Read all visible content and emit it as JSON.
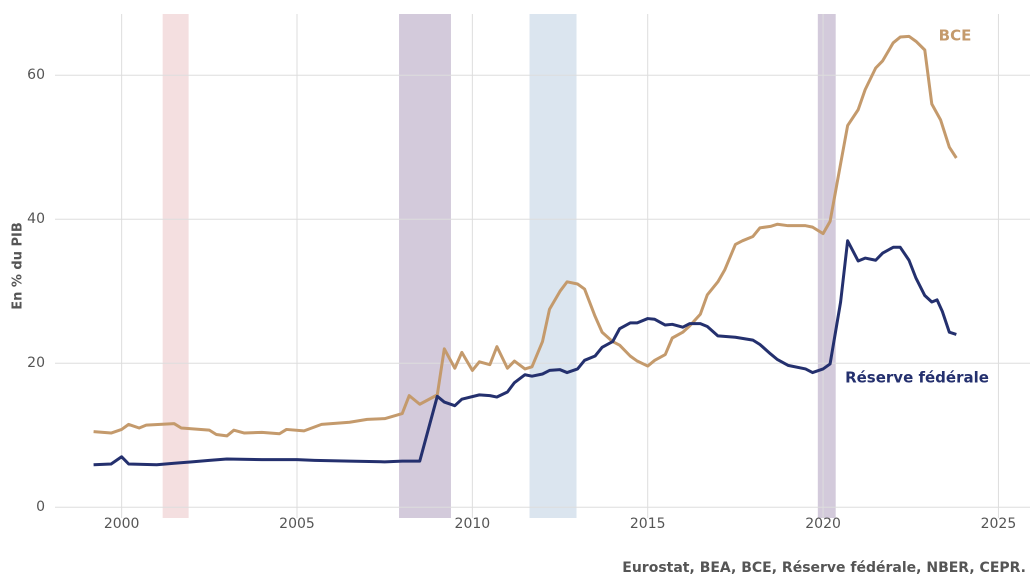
{
  "chart_data": {
    "type": "line",
    "y_label": "En % du PIB",
    "source": "Eurostat, BEA, BCE, Réserve fédérale, NBER, CEPR.",
    "xlim": [
      1998.1,
      2025.9
    ],
    "xticks": [
      2000,
      2005,
      2010,
      2015,
      2020,
      2025
    ],
    "ylim": [
      -1.5,
      68.5
    ],
    "yticks": [
      0,
      20,
      40,
      60
    ],
    "grid": true,
    "bands": [
      {
        "start": 2001.17,
        "end": 2001.91,
        "color": "#f4dfe0"
      },
      {
        "start": 2007.91,
        "end": 2009.39,
        "color": "#d3cadb"
      },
      {
        "start": 2011.63,
        "end": 2012.97,
        "color": "#dbe5ef"
      },
      {
        "start": 2019.85,
        "end": 2020.36,
        "color": "#d3cadb"
      }
    ],
    "series": [
      {
        "name": "BCE",
        "color": "#c49a6c",
        "x": [
          1999.2,
          1999.7,
          2000.0,
          2000.2,
          2000.5,
          2000.7,
          2001.5,
          2001.7,
          2002.5,
          2002.7,
          2003.0,
          2003.2,
          2003.5,
          2004.0,
          2004.5,
          2004.7,
          2005.2,
          2005.7,
          2006.5,
          2007.0,
          2007.5,
          2008.0,
          2008.2,
          2008.5,
          2009.0,
          2009.2,
          2009.5,
          2009.7,
          2010.0,
          2010.2,
          2010.5,
          2010.7,
          2011.0,
          2011.2,
          2011.5,
          2011.7,
          2012.0,
          2012.2,
          2012.5,
          2012.7,
          2013.0,
          2013.2,
          2013.5,
          2013.7,
          2014.0,
          2014.2,
          2014.5,
          2014.7,
          2015.0,
          2015.2,
          2015.5,
          2015.7,
          2016.0,
          2016.2,
          2016.5,
          2016.7,
          2017.0,
          2017.2,
          2017.5,
          2017.7,
          2018.0,
          2018.2,
          2018.5,
          2018.7,
          2019.0,
          2019.5,
          2019.7,
          2020.0,
          2020.2,
          2020.5,
          2020.7,
          2021.0,
          2021.2,
          2021.5,
          2021.7,
          2022.0,
          2022.2,
          2022.45,
          2022.65,
          2022.9,
          2023.1,
          2023.35,
          2023.6,
          2023.8
        ],
        "values": [
          10.5,
          10.3,
          10.8,
          11.5,
          11.0,
          11.4,
          11.6,
          11.0,
          10.7,
          10.1,
          9.9,
          10.7,
          10.3,
          10.4,
          10.2,
          10.8,
          10.6,
          11.5,
          11.8,
          12.2,
          12.3,
          13.0,
          15.5,
          14.3,
          15.6,
          22.0,
          19.3,
          21.5,
          19.0,
          20.2,
          19.8,
          22.3,
          19.3,
          20.3,
          19.2,
          19.5,
          23.0,
          27.5,
          30.0,
          31.3,
          31.0,
          30.3,
          26.5,
          24.3,
          23.0,
          22.5,
          21.0,
          20.3,
          19.6,
          20.4,
          21.2,
          23.5,
          24.3,
          25.2,
          26.8,
          29.5,
          31.3,
          33.0,
          36.5,
          37.0,
          37.6,
          38.8,
          39.0,
          39.3,
          39.1,
          39.1,
          38.9,
          38.0,
          39.7,
          47.7,
          53.0,
          55.2,
          58.0,
          61.0,
          62.0,
          64.5,
          65.3,
          65.4,
          64.7,
          63.5,
          56.0,
          53.8,
          50.0,
          48.5
        ]
      },
      {
        "name": "Réserve fédérale",
        "color": "#24306e",
        "x": [
          1999.2,
          1999.7,
          2000.0,
          2000.2,
          2001.0,
          2001.5,
          2002.0,
          2002.5,
          2003.0,
          2004.0,
          2005.0,
          2005.5,
          2006.5,
          2007.5,
          2008.0,
          2008.5,
          2008.7,
          2009.0,
          2009.2,
          2009.5,
          2009.7,
          2010.2,
          2010.5,
          2010.7,
          2011.0,
          2011.2,
          2011.5,
          2011.7,
          2012.0,
          2012.2,
          2012.5,
          2012.7,
          2013.0,
          2013.2,
          2013.5,
          2013.7,
          2014.0,
          2014.2,
          2014.5,
          2014.7,
          2015.0,
          2015.2,
          2015.5,
          2015.7,
          2016.0,
          2016.2,
          2016.5,
          2016.7,
          2017.0,
          2017.5,
          2018.0,
          2018.2,
          2018.5,
          2018.7,
          2019.0,
          2019.5,
          2019.7,
          2020.0,
          2020.2,
          2020.5,
          2020.7,
          2021.0,
          2021.2,
          2021.5,
          2021.7,
          2022.0,
          2022.2,
          2022.45,
          2022.65,
          2022.9,
          2023.1,
          2023.25,
          2023.4,
          2023.6,
          2023.8
        ],
        "values": [
          5.9,
          6.0,
          7.0,
          6.0,
          5.9,
          6.1,
          6.3,
          6.5,
          6.7,
          6.6,
          6.6,
          6.5,
          6.4,
          6.3,
          6.4,
          6.4,
          10.0,
          15.4,
          14.6,
          14.1,
          15.0,
          15.6,
          15.5,
          15.3,
          16.0,
          17.3,
          18.4,
          18.2,
          18.5,
          19.0,
          19.1,
          18.7,
          19.2,
          20.4,
          21.0,
          22.2,
          23.0,
          24.8,
          25.6,
          25.6,
          26.2,
          26.1,
          25.3,
          25.4,
          25.0,
          25.5,
          25.5,
          25.1,
          23.8,
          23.6,
          23.2,
          22.6,
          21.3,
          20.5,
          19.7,
          19.2,
          18.7,
          19.2,
          19.9,
          28.5,
          37.0,
          34.2,
          34.6,
          34.3,
          35.3,
          36.1,
          36.1,
          34.3,
          31.8,
          29.4,
          28.5,
          28.8,
          27.2,
          24.3,
          24.0
        ]
      }
    ]
  }
}
